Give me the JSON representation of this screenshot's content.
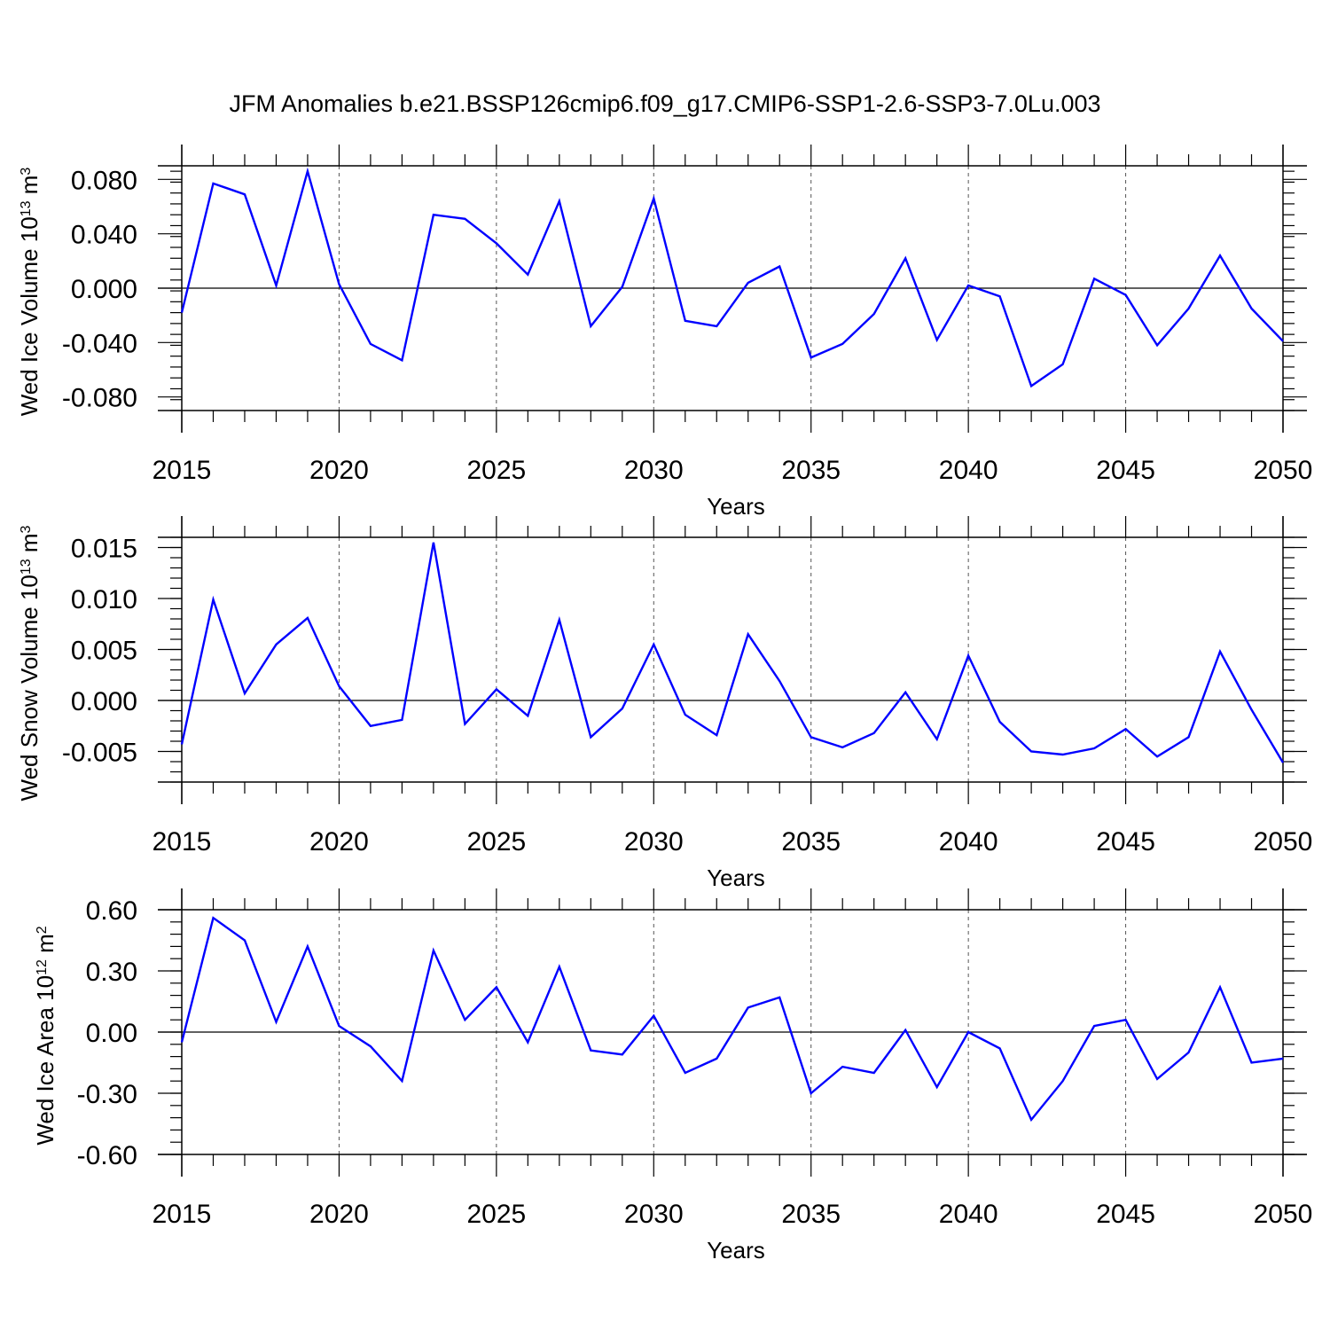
{
  "figure": {
    "title": "JFM Anomalies b.e21.BSSP126cmip6.f09_g17.CMIP6-SSP1-2.6-SSP3-7.0Lu.003"
  },
  "colors": {
    "line": "#0000ff",
    "axis": "#000000",
    "grid": "#555555"
  },
  "chart_data": [
    {
      "type": "line",
      "ylabel": {
        "base": "Wed Ice Volume 10",
        "exp": "13",
        "unit": " m",
        "unit_exp": "3"
      },
      "xlabel": "Years",
      "xlim": [
        2015,
        2050
      ],
      "ylim": [
        -0.09,
        0.09
      ],
      "yticks": [
        -0.08,
        -0.04,
        0.0,
        0.04,
        0.08
      ],
      "ytick_labels": [
        "-0.080",
        "-0.040",
        "0.000",
        "0.040",
        "0.080"
      ],
      "xticks": [
        2015,
        2020,
        2025,
        2030,
        2035,
        2040,
        2045,
        2050
      ],
      "xtick_labels": [
        "2015",
        "2020",
        "2025",
        "2030",
        "2035",
        "2040",
        "2045",
        "2050"
      ],
      "grid": "vertical dashed at major x ticks",
      "x": [
        2015,
        2016,
        2017,
        2018,
        2019,
        2020,
        2021,
        2022,
        2023,
        2024,
        2025,
        2026,
        2027,
        2028,
        2029,
        2030,
        2031,
        2032,
        2033,
        2034,
        2035,
        2036,
        2037,
        2038,
        2039,
        2040,
        2041,
        2042,
        2043,
        2044,
        2045,
        2046,
        2047,
        2048,
        2049,
        2050
      ],
      "series": [
        {
          "values": [
            -0.018,
            0.077,
            0.069,
            0.002,
            0.086,
            0.003,
            -0.041,
            -0.053,
            0.054,
            0.051,
            0.033,
            0.01,
            0.064,
            -0.028,
            0.001,
            0.066,
            -0.024,
            -0.028,
            0.004,
            0.016,
            -0.051,
            -0.041,
            -0.019,
            0.022,
            -0.038,
            0.002,
            -0.006,
            -0.072,
            -0.056,
            0.007,
            -0.005,
            -0.042,
            -0.015,
            0.024,
            -0.015,
            -0.039
          ]
        }
      ]
    },
    {
      "type": "line",
      "ylabel": {
        "base": "Wed Snow Volume 10",
        "exp": "13",
        "unit": " m",
        "unit_exp": "3"
      },
      "xlabel": "Years",
      "xlim": [
        2015,
        2050
      ],
      "ylim": [
        -0.008,
        0.016
      ],
      "yticks": [
        -0.005,
        0.0,
        0.005,
        0.01,
        0.015
      ],
      "ytick_labels": [
        "-0.005",
        "0.000",
        "0.005",
        "0.010",
        "0.015"
      ],
      "xticks": [
        2015,
        2020,
        2025,
        2030,
        2035,
        2040,
        2045,
        2050
      ],
      "xtick_labels": [
        "2015",
        "2020",
        "2025",
        "2030",
        "2035",
        "2040",
        "2045",
        "2050"
      ],
      "grid": "vertical dashed at major x ticks",
      "x": [
        2015,
        2016,
        2017,
        2018,
        2019,
        2020,
        2021,
        2022,
        2023,
        2024,
        2025,
        2026,
        2027,
        2028,
        2029,
        2030,
        2031,
        2032,
        2033,
        2034,
        2035,
        2036,
        2037,
        2038,
        2039,
        2040,
        2041,
        2042,
        2043,
        2044,
        2045,
        2046,
        2047,
        2048,
        2049,
        2050
      ],
      "series": [
        {
          "values": [
            -0.0043,
            0.0099,
            0.0007,
            0.0055,
            0.0081,
            0.0014,
            -0.0025,
            -0.0019,
            0.0155,
            -0.0023,
            0.0011,
            -0.0015,
            0.0079,
            -0.0036,
            -0.0008,
            0.0055,
            -0.0014,
            -0.0034,
            0.0065,
            0.0019,
            -0.0036,
            -0.0046,
            -0.0032,
            0.0008,
            -0.0038,
            0.0044,
            -0.0021,
            -0.005,
            -0.0053,
            -0.0047,
            -0.0028,
            -0.0055,
            -0.0036,
            0.0048,
            -0.0009,
            -0.0061
          ]
        }
      ]
    },
    {
      "type": "line",
      "ylabel": {
        "base": "Wed Ice Area 10",
        "exp": "12",
        "unit": " m",
        "unit_exp": "2"
      },
      "xlabel": "Years",
      "xlim": [
        2015,
        2050
      ],
      "ylim": [
        -0.6,
        0.6
      ],
      "yticks": [
        -0.6,
        -0.3,
        0.0,
        0.3,
        0.6
      ],
      "ytick_labels": [
        "-0.60",
        "-0.30",
        "0.00",
        "0.30",
        "0.60"
      ],
      "xticks": [
        2015,
        2020,
        2025,
        2030,
        2035,
        2040,
        2045,
        2050
      ],
      "xtick_labels": [
        "2015",
        "2020",
        "2025",
        "2030",
        "2035",
        "2040",
        "2045",
        "2050"
      ],
      "grid": "vertical dashed at major x ticks",
      "x": [
        2015,
        2016,
        2017,
        2018,
        2019,
        2020,
        2021,
        2022,
        2023,
        2024,
        2025,
        2026,
        2027,
        2028,
        2029,
        2030,
        2031,
        2032,
        2033,
        2034,
        2035,
        2036,
        2037,
        2038,
        2039,
        2040,
        2041,
        2042,
        2043,
        2044,
        2045,
        2046,
        2047,
        2048,
        2049,
        2050
      ],
      "series": [
        {
          "values": [
            -0.05,
            0.56,
            0.45,
            0.05,
            0.42,
            0.03,
            -0.07,
            -0.24,
            0.4,
            0.06,
            0.22,
            -0.05,
            0.32,
            -0.09,
            -0.11,
            0.08,
            -0.2,
            -0.13,
            0.12,
            0.17,
            -0.3,
            -0.17,
            -0.2,
            0.01,
            -0.27,
            0.0,
            -0.08,
            -0.43,
            -0.24,
            0.03,
            0.06,
            -0.23,
            -0.1,
            0.22,
            -0.15,
            -0.13
          ]
        }
      ]
    }
  ]
}
